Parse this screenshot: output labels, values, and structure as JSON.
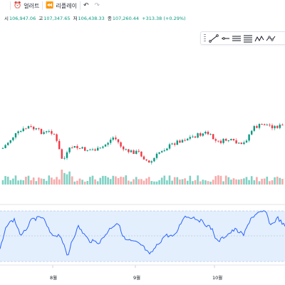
{
  "toolbar": {
    "indicator_label": "얼러트",
    "replay_label": "리플레이"
  },
  "ohlc": {
    "open_label": "시",
    "open": "106,947.06",
    "high_label": "고",
    "high": "107,347.65",
    "low_label": "저",
    "low": "106,438.33",
    "close_label": "종",
    "close": "107,260.44",
    "change": "+313.38 (+0.29%)"
  },
  "drawing_tools": [
    "trend-line-icon",
    "ray-icon",
    "horizontal-lines-icon",
    "fib-icon",
    "pattern-icon",
    "path-icon"
  ],
  "x_axis_labels": [
    {
      "text": "8월"
    },
    {
      "text": "9월"
    },
    {
      "text": "10월"
    }
  ],
  "colors": {
    "up": "#089981",
    "down": "#f23645",
    "rsi_line": "#2962ff",
    "rsi_band": "#e3effd"
  }
}
